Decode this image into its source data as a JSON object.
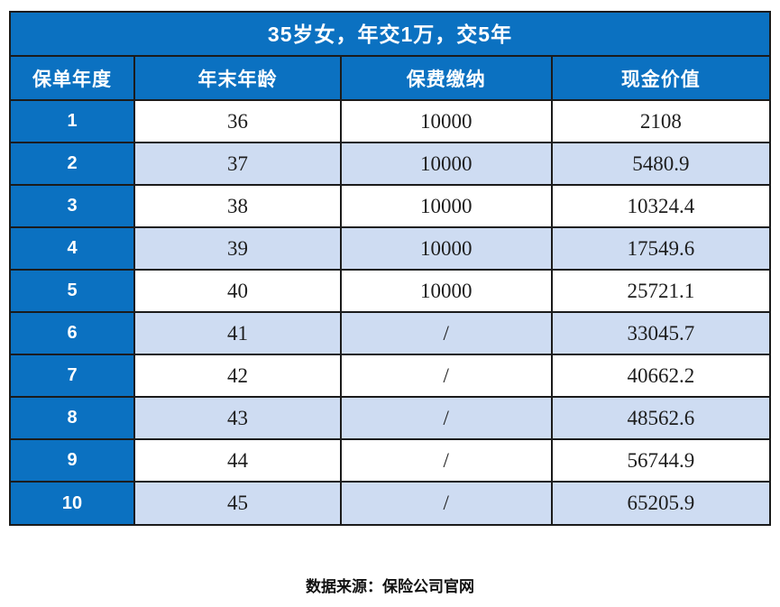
{
  "page": {
    "title": "35岁女，年交1万，交5年",
    "source_note": "数据来源：保险公司官网"
  },
  "chart_data": {
    "type": "table",
    "title": "35岁女，年交1万，交5年",
    "columns": [
      "保单年度",
      "年末年龄",
      "保费缴纳",
      "现金价值"
    ],
    "rows": [
      [
        1,
        36,
        "10000",
        "2108"
      ],
      [
        2,
        37,
        "10000",
        "5480.9"
      ],
      [
        3,
        38,
        "10000",
        "10324.4"
      ],
      [
        4,
        39,
        "10000",
        "17549.6"
      ],
      [
        5,
        40,
        "10000",
        "25721.1"
      ],
      [
        6,
        41,
        "/",
        "33045.7"
      ],
      [
        7,
        42,
        "/",
        "40662.2"
      ],
      [
        8,
        43,
        "/",
        "48562.6"
      ],
      [
        9,
        44,
        "/",
        "56744.9"
      ],
      [
        10,
        45,
        "/",
        "65205.9"
      ]
    ],
    "source_note": "数据来源：保险公司官网",
    "layout_hints": {
      "striping": "even rows light blue, odd rows white",
      "first_column_style": "solid blue with white bold text"
    }
  },
  "colors": {
    "header_blue": "#0b71c1",
    "stripe_light_blue": "#cedcf2",
    "border_black": "#1b1b1b",
    "title_text": "#ffffff",
    "cell_text": "#1d1d1d"
  }
}
